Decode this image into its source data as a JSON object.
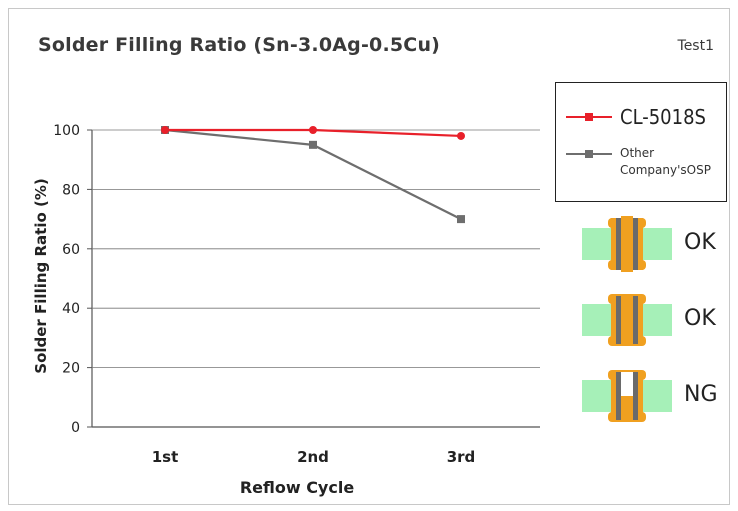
{
  "title": "Solder Filling Ratio (Sn-3.0Ag-0.5Cu)",
  "tag": "Test1",
  "chart_data": {
    "type": "line",
    "title": "Solder Filling Ratio (Sn-3.0Ag-0.5Cu)",
    "categories": [
      "1st",
      "2nd",
      "3rd"
    ],
    "xlabel": "Reflow Cycle",
    "ylabel": "Solder Filling Ratio (%)",
    "ylim": [
      0,
      100
    ],
    "yticks": [
      0,
      20,
      40,
      60,
      80,
      100
    ],
    "grid": true,
    "legend": "top-right",
    "series": [
      {
        "name": "CL-5018S",
        "values": [
          100,
          100,
          98
        ],
        "color": "#e8202a"
      },
      {
        "name": "Other Company'sOSP",
        "values": [
          100,
          95,
          70
        ],
        "color": "#6e6e6e"
      }
    ]
  },
  "legend": {
    "entry1": "CL-5018S",
    "entry2_line1": "Other",
    "entry2_line2": "Company'sOSP"
  },
  "results": [
    {
      "label": "OK"
    },
    {
      "label": "OK"
    },
    {
      "label": "NG"
    }
  ],
  "colors": {
    "board": "#a6f0b8",
    "pad": "#f0a020",
    "barrel": "#6a6a6a"
  }
}
